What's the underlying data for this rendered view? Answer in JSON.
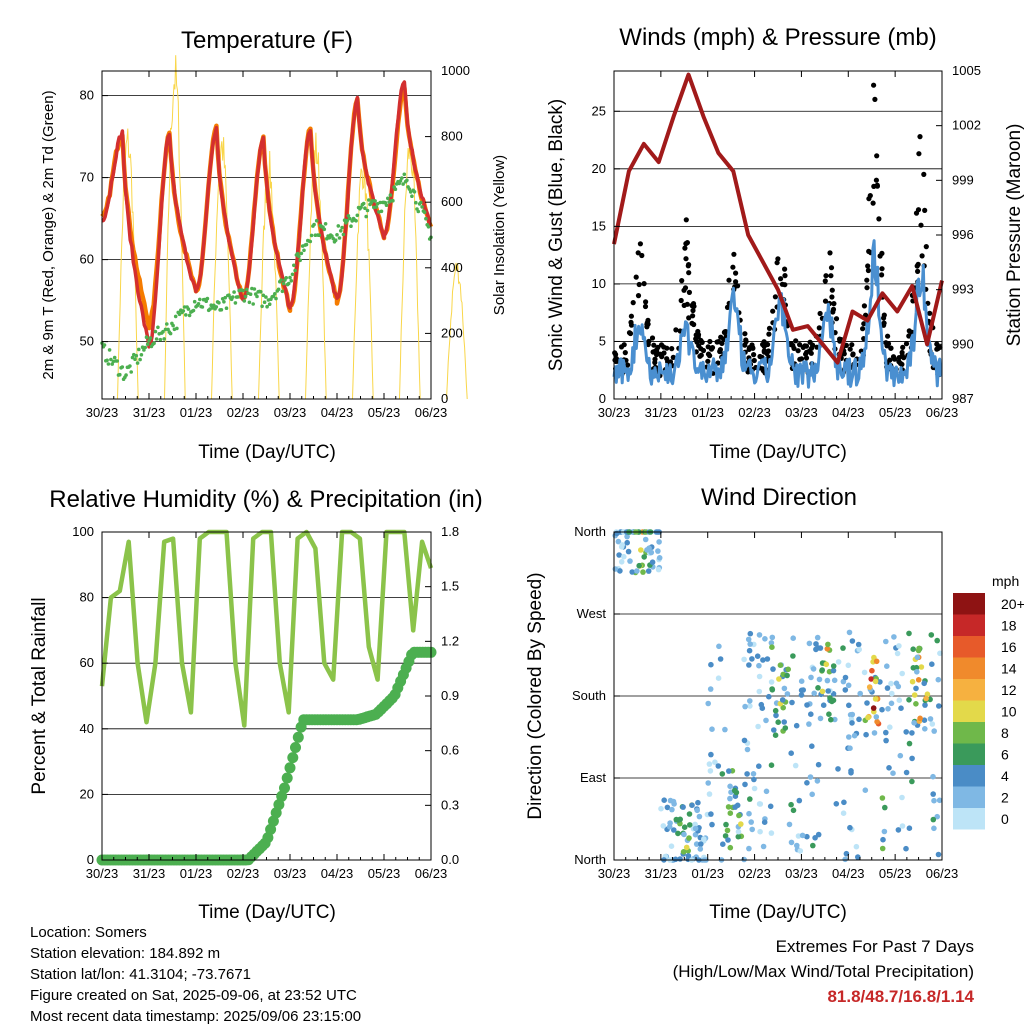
{
  "panels": {
    "temperature": {
      "title": "Temperature (F)",
      "ylabel_left": "2m & 9m T (Red, Orange) & 2m Td (Green)",
      "ylabel_right": "Solar Insolation (Yellow)",
      "xlabel": "Time (Day/UTC)"
    },
    "winds": {
      "title": "Winds (mph) & Pressure (mb)",
      "ylabel_left": "Sonic Wind & Gust (Blue, Black)",
      "ylabel_right": "Station Pressure (Maroon)",
      "xlabel": "Time (Day/UTC)"
    },
    "humidity": {
      "title": "Relative Humidity (%) & Precipitation (in)",
      "ylabel_left": "Percent & Total Rainfall",
      "xlabel": "Time (Day/UTC)"
    },
    "direction": {
      "title": "Wind Direction",
      "ylabel_left": "Direction (Colored By Speed)",
      "xlabel": "Time (Day/UTC)",
      "colorbar_title": "mph"
    }
  },
  "footer": {
    "location": "Location: Somers",
    "elevation": "Station elevation: 184.892 m",
    "latlon": "Station lat/lon: 41.3104; -73.7671",
    "created": "Figure created on Sat, 2025-09-06, at 23:52 UTC",
    "recent": "Most recent data timestamp: 2025/09/06 23:15:00",
    "extremes_title": "Extremes For Past 7 Days",
    "extremes_sub": "(High/Low/Max Wind/Total Precipitation)",
    "extremes_values": "81.8/48.7/16.8/1.14",
    "extremes_color": "#c62828"
  },
  "chart_data": [
    {
      "type": "line",
      "title": "Temperature (F)",
      "xlabel": "Time (Day/UTC)",
      "ylabel": "2m & 9m T (Red, Orange) & 2m Td (Green)",
      "y2label": "Solar Insolation (Yellow)",
      "x_ticks": [
        "30/23",
        "31/23",
        "01/23",
        "02/23",
        "03/23",
        "04/23",
        "05/23",
        "06/23"
      ],
      "ylim": [
        43,
        83
      ],
      "y_ticks": [
        50,
        60,
        70,
        80
      ],
      "y2lim": [
        0,
        1000
      ],
      "y2_ticks": [
        0,
        200,
        400,
        600,
        800,
        1000
      ],
      "grid": "horizontal",
      "series": [
        {
          "color": "#d32f2f",
          "peaks": [
            75.5,
            75.5,
            76,
            75,
            76,
            79.5,
            81.8
          ],
          "troughs": [
            65,
            49.5,
            56,
            55,
            54,
            55,
            63,
            64
          ]
        },
        {
          "color": "#f57c00",
          "peaks": [
            75.5,
            75.5,
            76,
            75,
            76,
            79.5,
            81
          ],
          "troughs": [
            65,
            52,
            56,
            55,
            54,
            55,
            63,
            64
          ]
        },
        {
          "color": "#4caf50",
          "points": [
            49,
            46,
            50,
            52,
            55,
            54,
            56,
            55,
            58,
            64,
            63,
            66,
            67,
            70,
            63
          ]
        },
        {
          "color": "#f9d649",
          "axis": "right",
          "peaks": [
            780,
            980,
            770,
            700,
            760,
            700,
            760,
            400
          ]
        }
      ],
      "line_colors": {
        "t2m": "#d32f2f",
        "t9m": "#f57c00",
        "td": "#4caf50",
        "solar": "#f9d649"
      }
    },
    {
      "type": "scatter",
      "title": "Winds (mph) & Pressure (mb)",
      "xlabel": "Time (Day/UTC)",
      "ylabel": "Sonic Wind & Gust (Blue, Black)",
      "y2label": "Station Pressure (Maroon)",
      "x_ticks": [
        "30/23",
        "31/23",
        "01/23",
        "02/23",
        "03/23",
        "04/23",
        "05/23",
        "06/23"
      ],
      "ylim": [
        0,
        28.5
      ],
      "y_ticks": [
        0,
        5,
        10,
        15,
        20,
        25
      ],
      "y2lim": [
        987,
        1005
      ],
      "y2_ticks": [
        987,
        990,
        993,
        996,
        999,
        1002,
        1005
      ],
      "grid": "horizontal",
      "series": [
        {
          "color": "#000000",
          "daily_max": [
            15,
            14,
            14,
            15,
            14,
            26,
            22,
            27
          ]
        },
        {
          "color": "#4a8fd0",
          "daily_max": [
            7,
            7,
            9,
            9,
            9,
            14,
            12,
            14
          ]
        },
        {
          "color": "#a11a1a",
          "axis": "right",
          "points": [
            995.5,
            999.5,
            1001,
            1000,
            1002.5,
            1004.8,
            1002.5,
            1000.5,
            999.5,
            996,
            994.5,
            993,
            990.8,
            991,
            990,
            989,
            991.8,
            991.3,
            992.8,
            991.8,
            993.2,
            990,
            993.5
          ]
        }
      ],
      "line_colors": {
        "gust": "#000000",
        "wind": "#4a8fd0",
        "pressure": "#a11a1a"
      }
    },
    {
      "type": "line",
      "title": "Relative Humidity (%) & Precipitation (in)",
      "xlabel": "Time (Day/UTC)",
      "ylabel": "Percent & Total Rainfall",
      "x_ticks": [
        "30/23",
        "31/23",
        "01/23",
        "02/23",
        "03/23",
        "04/23",
        "05/23",
        "06/23"
      ],
      "ylim": [
        0,
        100
      ],
      "y_ticks": [
        0,
        20,
        40,
        60,
        80,
        100
      ],
      "y2lim": [
        0,
        1.8
      ],
      "y2_ticks": [
        "0.0",
        "0.3",
        "0.6",
        "0.9",
        "1.2",
        "1.5",
        "1.8"
      ],
      "grid": "horizontal",
      "series": [
        {
          "color": "#8bc34a",
          "points": [
            53,
            80,
            82,
            97,
            60,
            42,
            60,
            97,
            98,
            60,
            45,
            98,
            100,
            100,
            100,
            60,
            41,
            98,
            100,
            100,
            60,
            45,
            98,
            100,
            95,
            60,
            55,
            100,
            100,
            98,
            65,
            55,
            100,
            100,
            100,
            70,
            97,
            89
          ]
        },
        {
          "color": "#4caf50",
          "axis": "right",
          "points": [
            0,
            0,
            0,
            0,
            0,
            0,
            0,
            0,
            0,
            0.1,
            0.4,
            0.77,
            0.77,
            0.77,
            0.77,
            0.8,
            0.9,
            1.14,
            1.14
          ]
        }
      ],
      "line_colors": {
        "rh": "#8bc34a",
        "rain": "#4caf50"
      }
    },
    {
      "type": "scatter",
      "title": "Wind Direction",
      "xlabel": "Time (Day/UTC)",
      "ylabel": "Direction (Colored By Speed)",
      "x_ticks": [
        "30/23",
        "31/23",
        "01/23",
        "02/23",
        "03/23",
        "04/23",
        "05/23",
        "06/23"
      ],
      "y_ticks": [
        "North",
        "East",
        "South",
        "West",
        "North"
      ],
      "grid": "horizontal",
      "colorbar": {
        "title": "mph",
        "labels": [
          "0",
          "2",
          "4",
          "6",
          "8",
          "10",
          "12",
          "14",
          "16",
          "18",
          "20+"
        ],
        "colors": [
          "#bde4f7",
          "#7fb8e4",
          "#4a8cc6",
          "#3a9a5b",
          "#6fb84a",
          "#e3d94a",
          "#f6b140",
          "#f08a2c",
          "#e75a2a",
          "#c62828",
          "#8e1313"
        ]
      }
    }
  ]
}
